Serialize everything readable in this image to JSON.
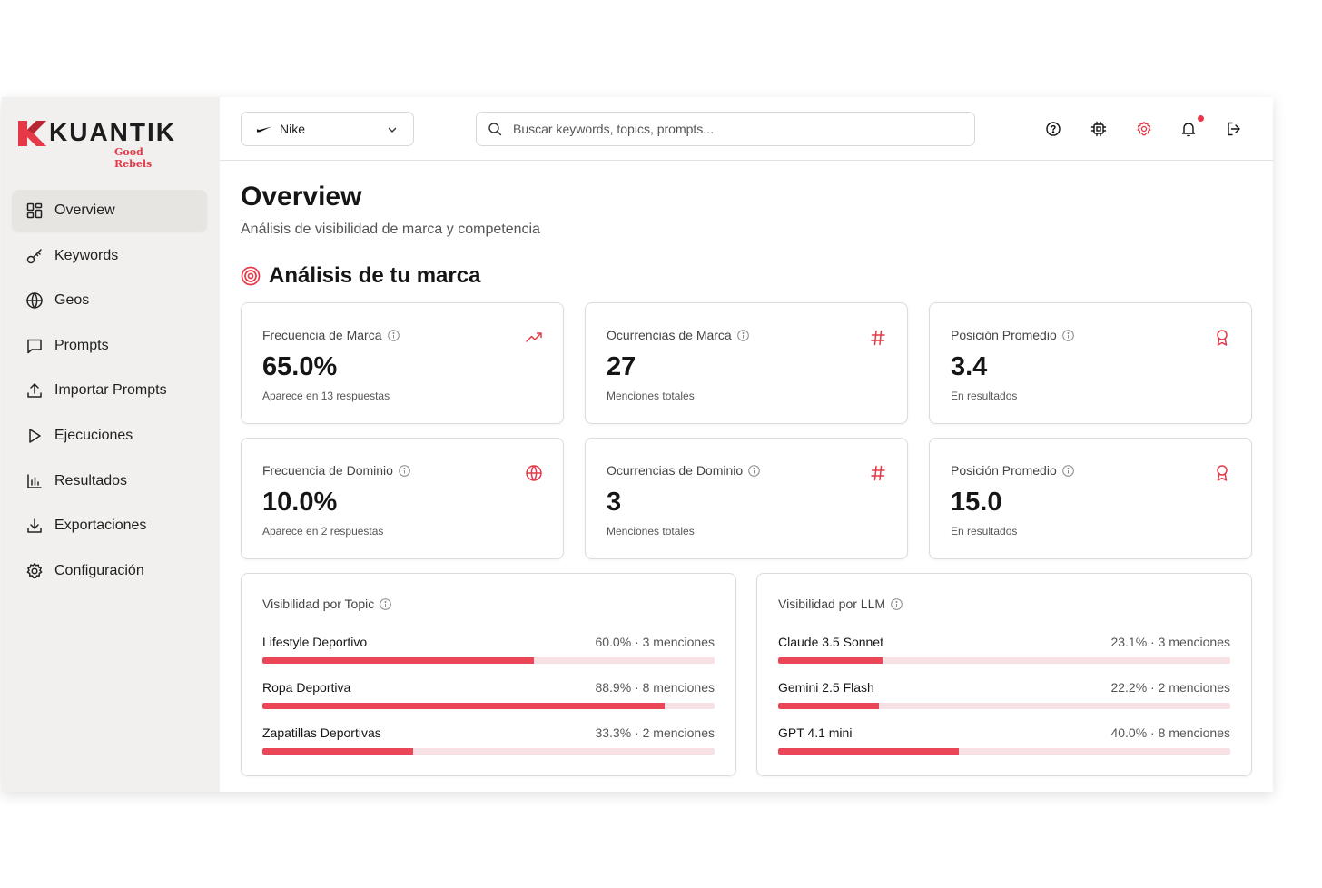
{
  "app": {
    "logo_text": "KUANTIK",
    "logo_subtitle": "Good Rebels",
    "accent_color": "#e53948"
  },
  "sidebar": {
    "items": [
      {
        "label": "Overview",
        "icon": "grid-icon",
        "active": true
      },
      {
        "label": "Keywords",
        "icon": "key-icon",
        "active": false
      },
      {
        "label": "Geos",
        "icon": "globe-icon",
        "active": false
      },
      {
        "label": "Prompts",
        "icon": "message-icon",
        "active": false
      },
      {
        "label": "Importar Prompts",
        "icon": "upload-icon",
        "active": false
      },
      {
        "label": "Ejecuciones",
        "icon": "play-icon",
        "active": false
      },
      {
        "label": "Resultados",
        "icon": "bar-chart-icon",
        "active": false
      },
      {
        "label": "Exportaciones",
        "icon": "download-icon",
        "active": false
      },
      {
        "label": "Configuración",
        "icon": "gear-icon",
        "active": false
      }
    ]
  },
  "topbar": {
    "brand_selected": "Nike",
    "search_placeholder": "Buscar keywords, topics, prompts...",
    "icons": [
      "help-icon",
      "cpu-icon",
      "settings-icon",
      "bell-icon",
      "logout-icon"
    ]
  },
  "page": {
    "title": "Overview",
    "subtitle": "Análisis de visibilidad de marca y competencia",
    "section_title": "Análisis de tu marca"
  },
  "metrics": [
    {
      "label": "Frecuencia de Marca",
      "value": "65.0%",
      "sub": "Aparece en 13 respuestas",
      "icon": "trending-up-icon"
    },
    {
      "label": "Ocurrencias de Marca",
      "value": "27",
      "sub": "Menciones totales",
      "icon": "hash-icon"
    },
    {
      "label": "Posición Promedio",
      "value": "3.4",
      "sub": "En resultados",
      "icon": "award-icon"
    },
    {
      "label": "Frecuencia de Dominio",
      "value": "10.0%",
      "sub": "Aparece en 2 respuestas",
      "icon": "globe-icon"
    },
    {
      "label": "Ocurrencias de Dominio",
      "value": "3",
      "sub": "Menciones totales",
      "icon": "hash-icon"
    },
    {
      "label": "Posición Promedio",
      "value": "15.0",
      "sub": "En resultados",
      "icon": "award-icon"
    }
  ],
  "topic_panel": {
    "title": "Visibilidad por Topic",
    "rows": [
      {
        "name": "Lifestyle Deportivo",
        "meta": "60.0% · 3 menciones",
        "pct": 60.0
      },
      {
        "name": "Ropa Deportiva",
        "meta": "88.9% · 8 menciones",
        "pct": 88.9
      },
      {
        "name": "Zapatillas Deportivas",
        "meta": "33.3% · 2 menciones",
        "pct": 33.3
      }
    ]
  },
  "llm_panel": {
    "title": "Visibilidad por LLM",
    "rows": [
      {
        "name": "Claude 3.5 Sonnet",
        "meta": "23.1% · 3 menciones",
        "pct": 23.1
      },
      {
        "name": "Gemini 2.5 Flash",
        "meta": "22.2% · 2 menciones",
        "pct": 22.2
      },
      {
        "name": "GPT 4.1 mini",
        "meta": "40.0% · 8 menciones",
        "pct": 40.0
      }
    ]
  }
}
